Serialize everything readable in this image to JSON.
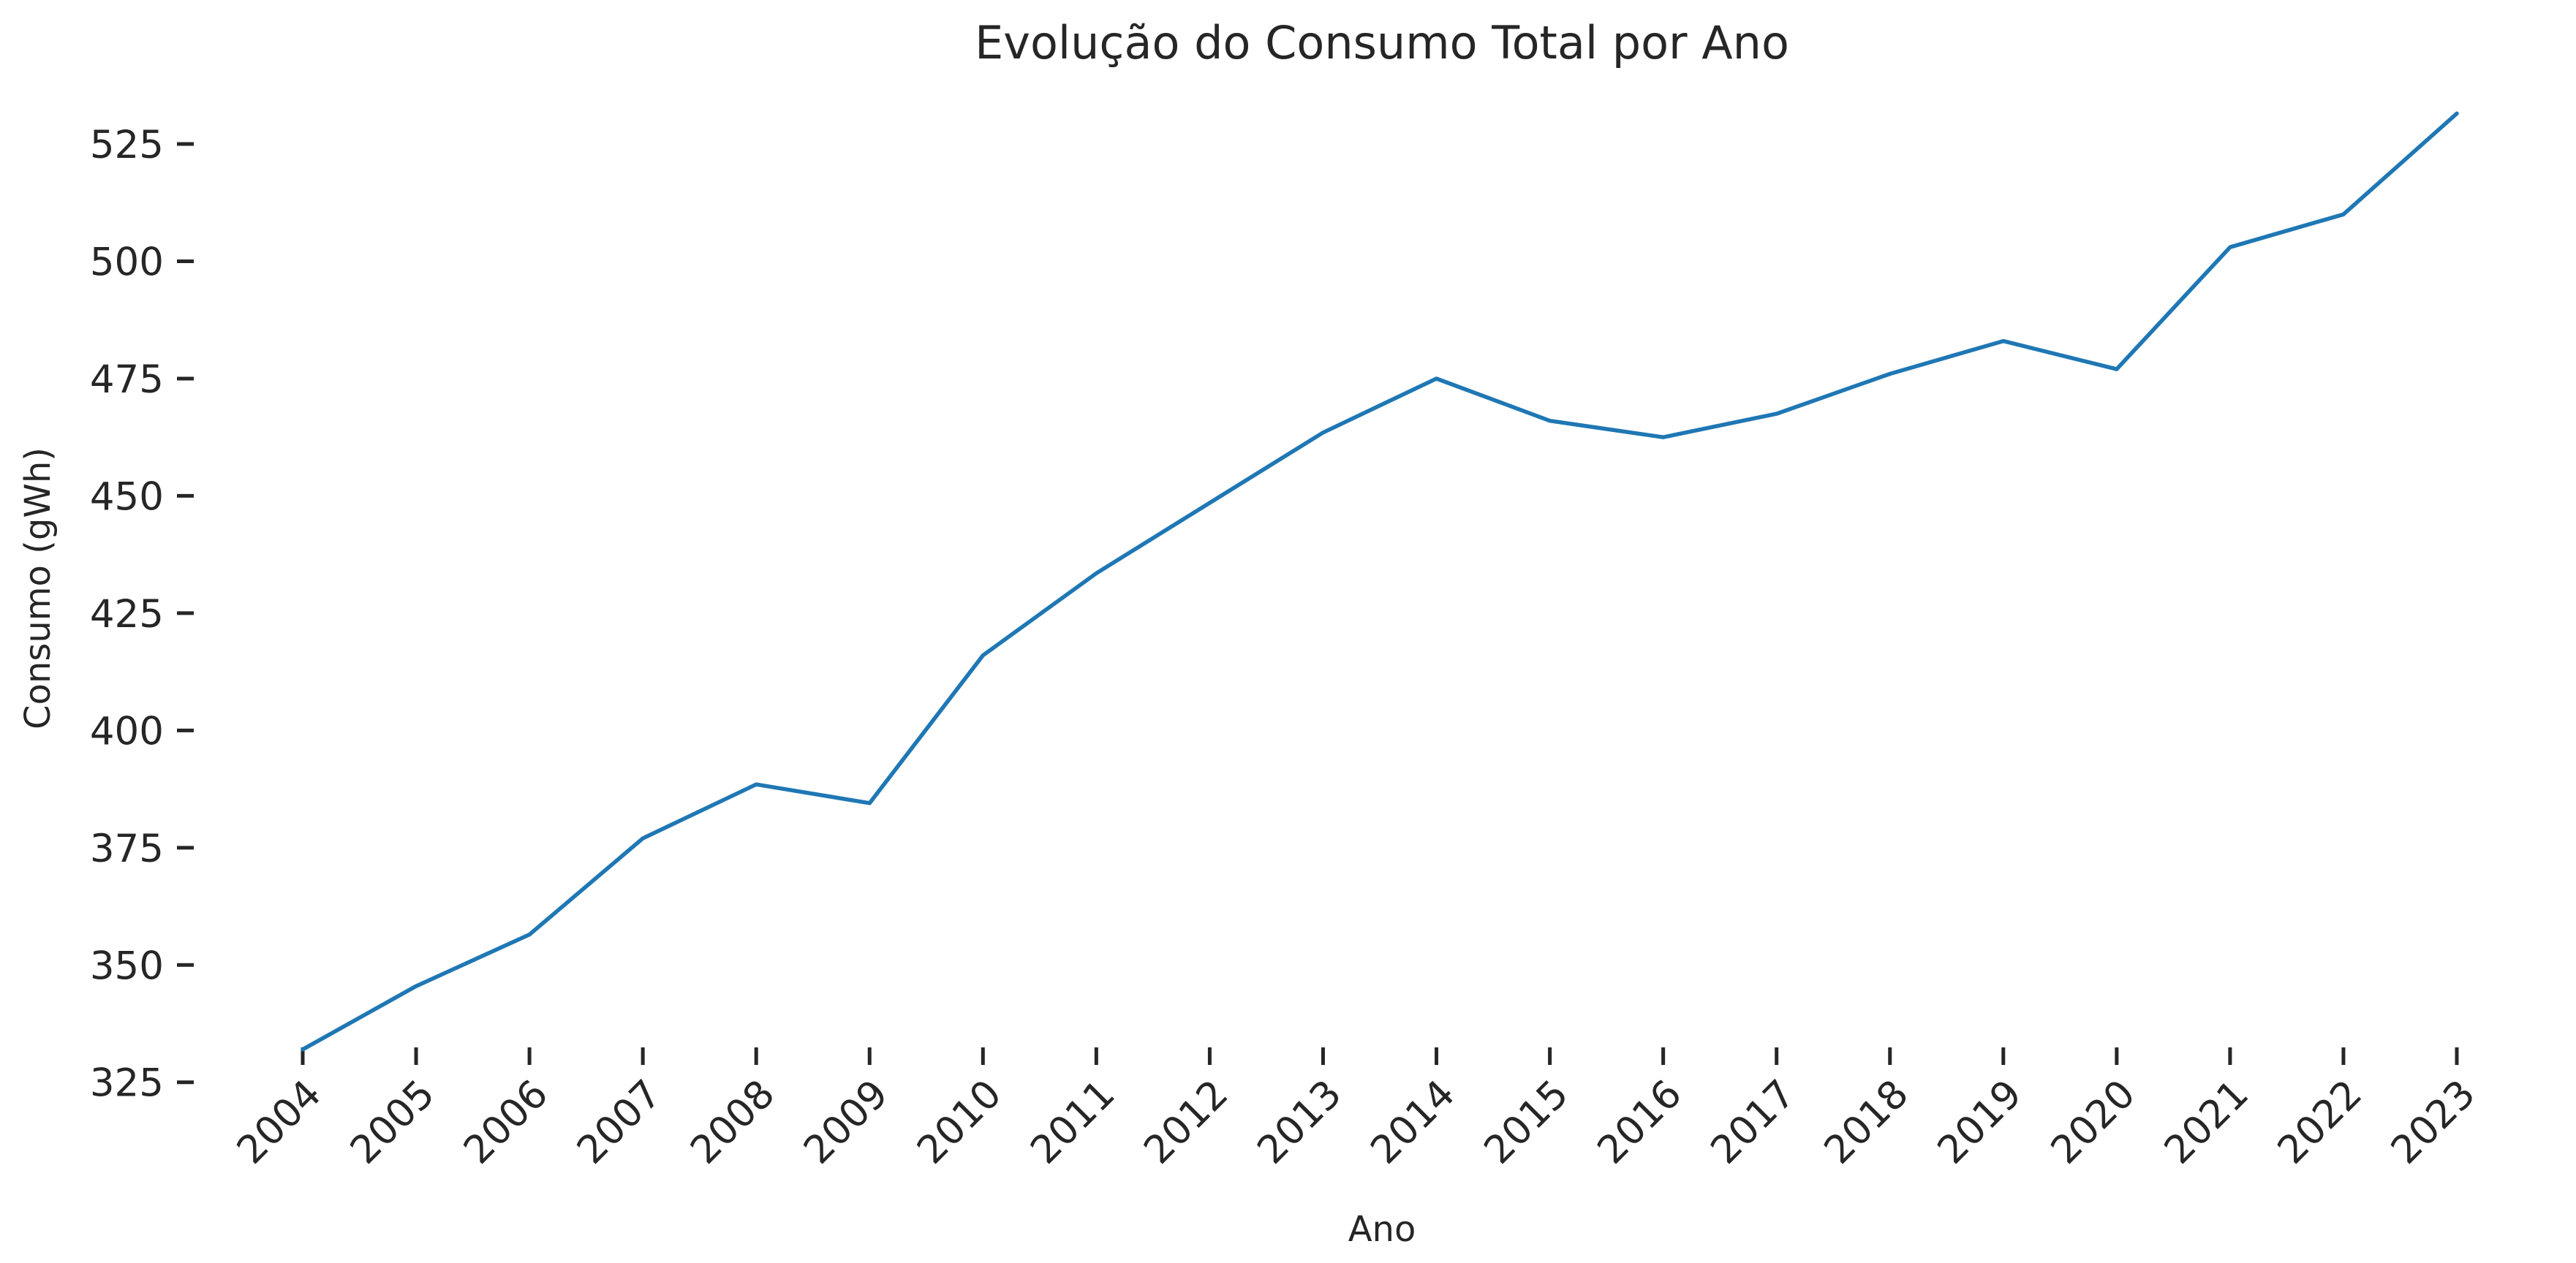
{
  "chart_data": {
    "type": "line",
    "title": "Evolução do Consumo Total por Ano",
    "xlabel": "Ano",
    "ylabel": "Consumo (gWh)",
    "x": [
      "2004",
      "2005",
      "2006",
      "2007",
      "2008",
      "2009",
      "2010",
      "2011",
      "2012",
      "2013",
      "2014",
      "2015",
      "2016",
      "2017",
      "2018",
      "2019",
      "2020",
      "2021",
      "2022",
      "2023"
    ],
    "series": [
      {
        "values": [
          332,
          345.5,
          356.5,
          377,
          388.5,
          384.5,
          416,
          433.5,
          448.5,
          463.5,
          475,
          466,
          462.5,
          467.5,
          476,
          483,
          477,
          503,
          510,
          531.5
        ],
        "color": "#1f77b4"
      }
    ],
    "yticks": [
      325,
      350,
      375,
      400,
      425,
      450,
      475,
      500,
      525
    ],
    "ylim": [
      322,
      537
    ],
    "grid": false,
    "legend": "none"
  }
}
